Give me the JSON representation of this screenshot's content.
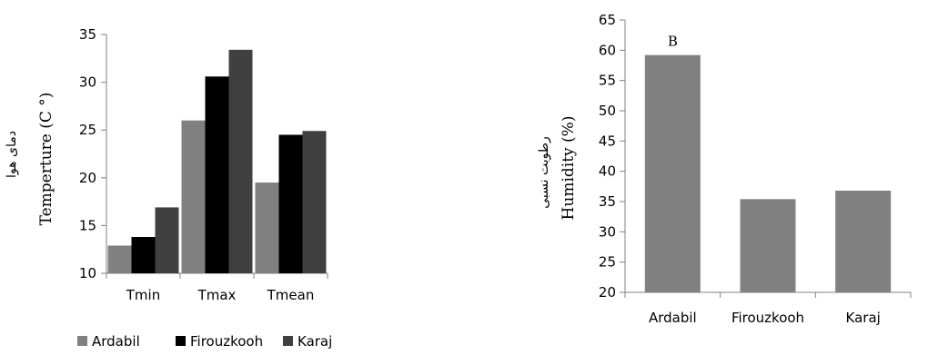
{
  "colors": {
    "Ardabil": "#808080",
    "Firouzkooh": "#000000",
    "Karaj": "#404040",
    "axis": "#808080"
  },
  "chart_data": [
    {
      "type": "bar",
      "categories": [
        "Tmin",
        "Tmax",
        "Tmean"
      ],
      "series": [
        {
          "name": "Ardabil",
          "values": [
            12.9,
            26.0,
            19.5
          ]
        },
        {
          "name": "Firouzkooh",
          "values": [
            13.8,
            30.6,
            24.5
          ]
        },
        {
          "name": "Karaj",
          "values": [
            16.9,
            33.4,
            24.9
          ]
        }
      ],
      "ylabel": "Temperture (C °)",
      "ylabel_fa": "دمای هوا",
      "ylim": [
        10,
        35
      ],
      "yticks": [
        10,
        15,
        20,
        25,
        30,
        35
      ],
      "legend": "bottom",
      "grid": false
    },
    {
      "type": "bar",
      "categories": [
        "Ardabil",
        "Firouzkooh",
        "Karaj"
      ],
      "series": [
        {
          "values": [
            59.2,
            35.4,
            36.8
          ]
        }
      ],
      "annotations": [
        {
          "category": "Ardabil",
          "text": "B"
        }
      ],
      "ylabel": "Humidity (%)",
      "ylabel_fa": "رطوبت نسبی",
      "ylim": [
        20,
        65
      ],
      "yticks": [
        20,
        25,
        30,
        35,
        40,
        45,
        50,
        55,
        60,
        65
      ],
      "grid": false
    }
  ]
}
